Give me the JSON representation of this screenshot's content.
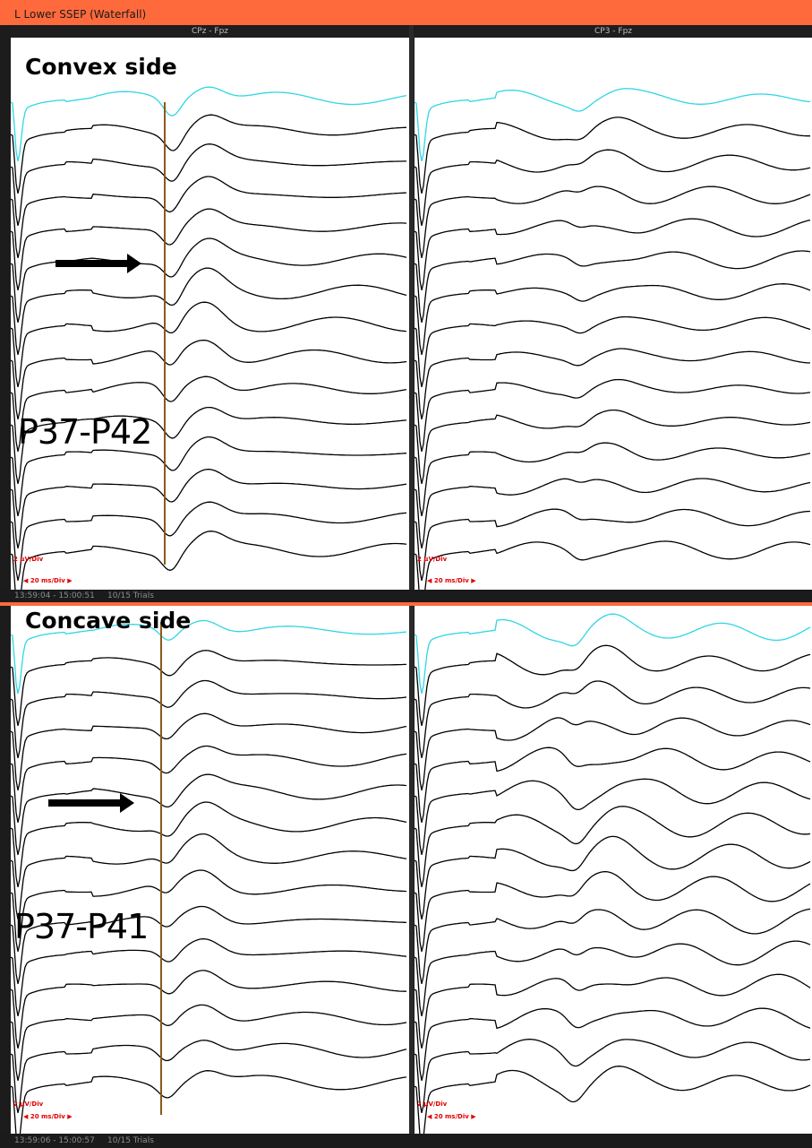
{
  "window": {
    "title": "L Lower SSEP (Waterfall)"
  },
  "channels": [
    "CPz - Fpz",
    "CP3 - Fpz"
  ],
  "top_block": {
    "side_label": "Convex side",
    "latency_label": "P37-P42",
    "amp_scale": "2 µV/Div",
    "time_scale": "20 ms/Div",
    "time_range": "13:59:04 - 15:00:51",
    "trials": "10/15 Trials"
  },
  "bottom_block": {
    "side_label": "Concave side",
    "latency_label": "P37-P41",
    "amp_scale": "2 µV/Div",
    "time_scale": "20 ms/Div",
    "time_range": "13:59:06 - 15:00:57",
    "trials": "10/15 Trials"
  },
  "colors": {
    "titlebar": "#ff6a3d",
    "baseline_trace": "#2fd6e6",
    "trace": "#000000",
    "marker": "#8a5a1a",
    "scale": "#e00000"
  },
  "icons": [
    "arrow-right-icon",
    "scale-left-arrow-icon",
    "scale-right-arrow-icon"
  ]
}
